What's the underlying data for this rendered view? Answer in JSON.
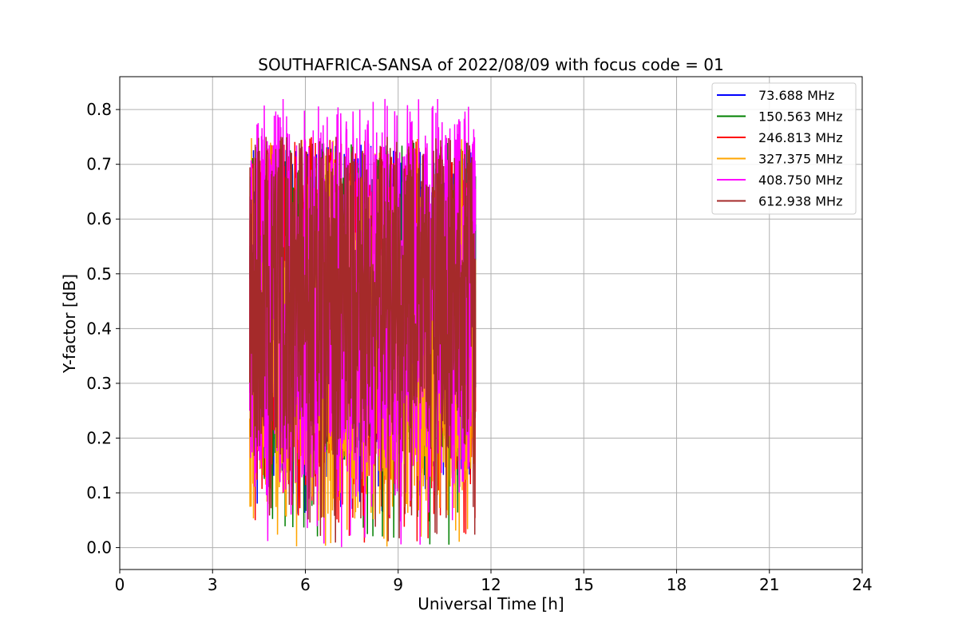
{
  "chart_data": {
    "type": "line",
    "title": "SOUTHAFRICA-SANSA of 2022/08/09 with focus code = 01",
    "xlabel": "Universal Time [h]",
    "ylabel": "Y-factor [dB]",
    "xlim": [
      0,
      24
    ],
    "ylim": [
      -0.04,
      0.86
    ],
    "xticks": [
      0,
      3,
      6,
      9,
      12,
      15,
      18,
      21,
      24
    ],
    "xtick_labels": [
      "0",
      "3",
      "6",
      "9",
      "12",
      "15",
      "18",
      "21",
      "24"
    ],
    "yticks": [
      0.0,
      0.1,
      0.2,
      0.3,
      0.4,
      0.5,
      0.6,
      0.7,
      0.8
    ],
    "ytick_labels": [
      "0.0",
      "0.1",
      "0.2",
      "0.3",
      "0.4",
      "0.5",
      "0.6",
      "0.7",
      "0.8"
    ],
    "grid": true,
    "legend_position": "top-right",
    "time_range": [
      4.2,
      11.5
    ],
    "series": [
      {
        "name": " 73.688 MHz",
        "color": "#0000ff",
        "mean": 0.42,
        "amplitude": 0.28,
        "min": 0.06,
        "max": 0.74
      },
      {
        "name": "150.563 MHz",
        "color": "#008000",
        "mean": 0.43,
        "amplitude": 0.28,
        "min": 0.0,
        "max": 0.74
      },
      {
        "name": "246.813 MHz",
        "color": "#ff0000",
        "mean": 0.42,
        "amplitude": 0.3,
        "min": 0.0,
        "max": 0.75
      },
      {
        "name": "327.375 MHz",
        "color": "#ffa500",
        "mean": 0.38,
        "amplitude": 0.3,
        "min": 0.0,
        "max": 0.75
      },
      {
        "name": "408.750 MHz",
        "color": "#ff00ff",
        "mean": 0.45,
        "amplitude": 0.34,
        "min": 0.0,
        "max": 0.82
      },
      {
        "name": "612.938 MHz",
        "color": "#a52a2a",
        "mean": 0.46,
        "amplitude": 0.27,
        "min": 0.0,
        "max": 0.75
      }
    ]
  }
}
